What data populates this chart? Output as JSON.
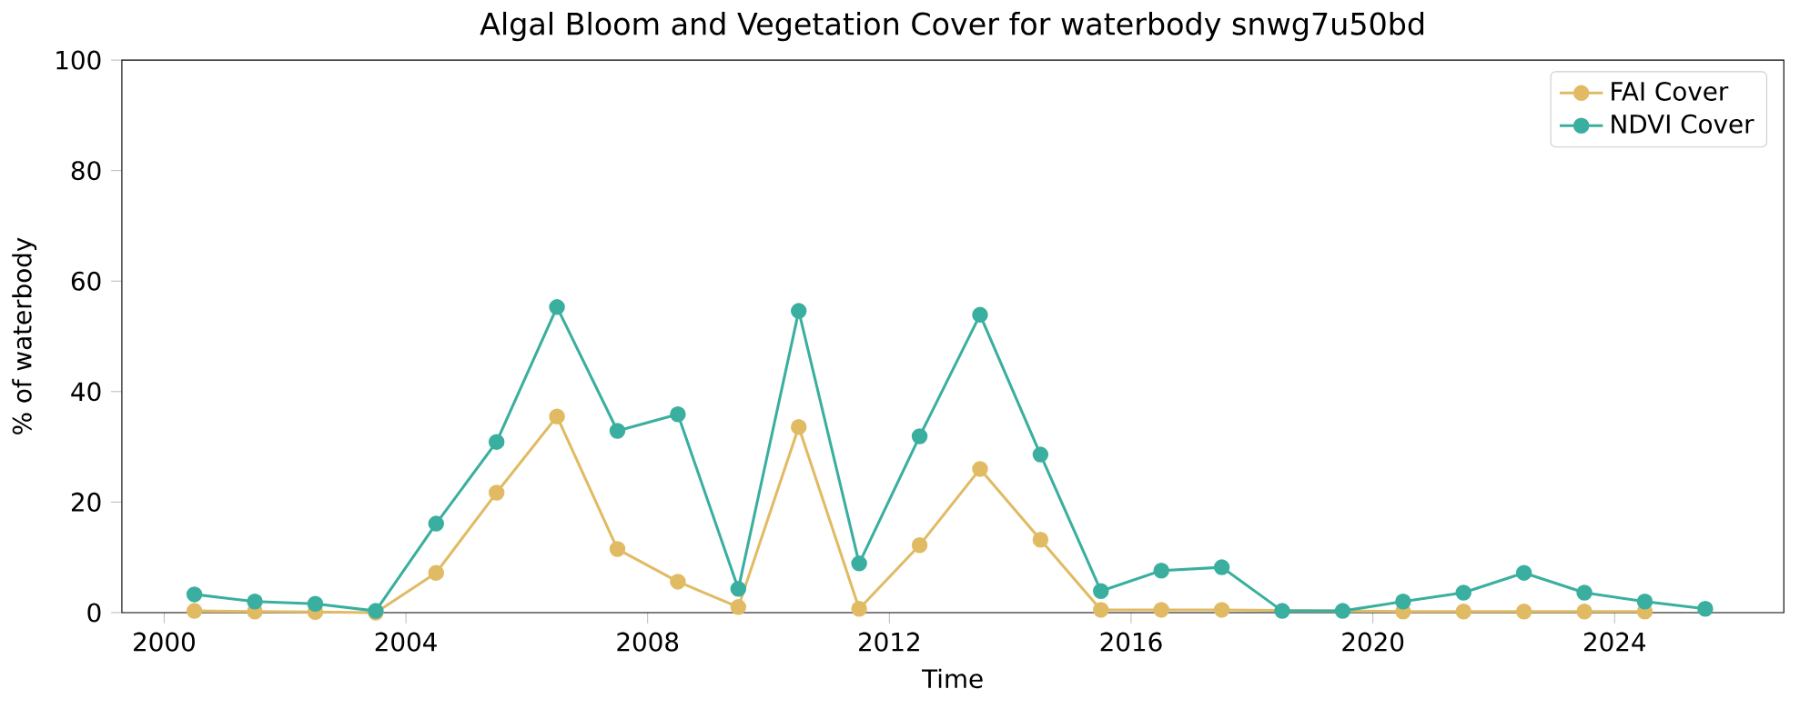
{
  "chart_data": {
    "type": "line",
    "title": "Algal Bloom and Vegetation Cover for waterbody snwg7u50bd",
    "xlabel": "Time",
    "ylabel": "% of waterbody",
    "x": [
      2000.5,
      2001.5,
      2002.5,
      2003.5,
      2004.5,
      2005.5,
      2006.5,
      2007.5,
      2008.5,
      2009.5,
      2010.5,
      2011.5,
      2012.5,
      2013.5,
      2014.5,
      2015.5,
      2016.5,
      2017.5,
      2018.5,
      2019.5,
      2020.5,
      2021.5,
      2022.5,
      2023.5,
      2024.5,
      2025.5
    ],
    "series": [
      {
        "name": "FAI Cover",
        "color": "#e0bb64",
        "values": [
          0.3,
          0.2,
          0.1,
          0,
          7.2,
          21.7,
          35.5,
          11.5,
          5.6,
          1,
          33.6,
          0.7,
          12.2,
          26,
          13.2,
          0.5,
          0.5,
          0.5,
          null,
          null,
          0.2,
          0.2,
          0.2,
          0.2,
          0.2,
          null
        ]
      },
      {
        "name": "NDVI Cover",
        "color": "#3aaf9f",
        "values": [
          3.3,
          2,
          1.6,
          0.3,
          16.1,
          30.9,
          55.3,
          32.9,
          35.9,
          4.3,
          54.6,
          8.9,
          31.9,
          53.9,
          28.6,
          3.9,
          7.6,
          8.2,
          0.3,
          0.3,
          2,
          3.6,
          7.2,
          3.6,
          2,
          0.7
        ]
      }
    ],
    "xlim": [
      1999.3,
      2026.8
    ],
    "xticks": [
      2000,
      2004,
      2008,
      2012,
      2016,
      2020,
      2024
    ],
    "ylim": [
      0,
      100
    ],
    "yticks": [
      0,
      20,
      40,
      60,
      80,
      100
    ],
    "legend": "top right",
    "marker": "circle",
    "line_style": "solid",
    "grid": false
  }
}
